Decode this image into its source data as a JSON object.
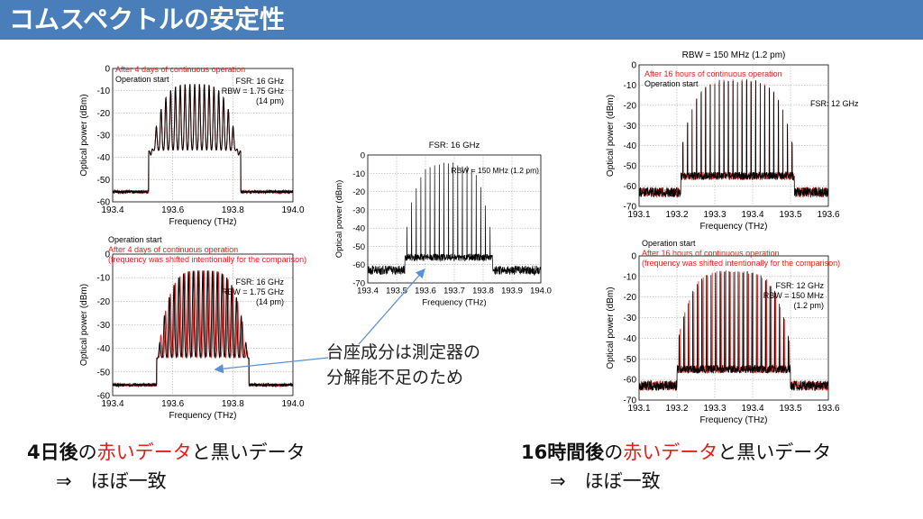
{
  "slide": {
    "title": "コムスペクトルの安定性",
    "colors": {
      "banner": "#4a7ebb",
      "red": "#e0201c",
      "black": "#000000",
      "arrow": "#5b8fd6"
    }
  },
  "callout": {
    "line1": "台座成分は測定器の",
    "line2": "分解能不足のため",
    "icon": "arrow-icon"
  },
  "summaries": [
    {
      "bold": "4日後",
      "mid1": "の",
      "red": "赤いデータ",
      "mid2": "と黒いデータ",
      "line2": "⇒　ほぼ一致"
    },
    {
      "bold": "16時間後",
      "mid1": "の",
      "red": "赤いデータ",
      "mid2": "と黒いデータ",
      "line2": "⇒　ほぼ一致"
    }
  ],
  "chart_data": [
    {
      "id": "c1",
      "type": "line",
      "xlabel": "Frequency (THz)",
      "ylabel": "Optical power (dBm)",
      "xlim": [
        193.4,
        194.0
      ],
      "ylim": [
        -60,
        0
      ],
      "xticks": [
        "193.4",
        "193.6",
        "193.8",
        "194.0"
      ],
      "yticks": [
        "0",
        "-10",
        "-20",
        "-30",
        "-40",
        "-50",
        "-60"
      ],
      "title": "",
      "legend": [
        {
          "text": "After 4 days of continuous operation",
          "color": "#e0201c"
        },
        {
          "text": "Operation start",
          "color": "#000000"
        }
      ],
      "notes": [
        "FSR: 16 GHz",
        "RBW = 1.75 GHz",
        "(14 pm)"
      ],
      "comb": {
        "center": 193.673,
        "fsr_thz": 0.016,
        "lines": 19,
        "peak_db": -7,
        "edge_db": -47,
        "floor_db": -55.5,
        "valley_db": -37,
        "pedestal_db": -53,
        "kind": "broad"
      },
      "series": [
        {
          "color": "#e0201c"
        },
        {
          "color": "#000000"
        }
      ]
    },
    {
      "id": "c2",
      "type": "line",
      "xlabel": "Frequency (THz)",
      "ylabel": "Optical power (dBm)",
      "xlim": [
        193.4,
        194.0
      ],
      "ylim": [
        -60,
        0
      ],
      "xticks": [
        "193.4",
        "193.6",
        "193.8",
        "194.0"
      ],
      "yticks": [
        "0",
        "-10",
        "-20",
        "-30",
        "-40",
        "-50",
        "-60"
      ],
      "title": "",
      "legend": [
        {
          "text": "Operation start",
          "color": "#000000"
        },
        {
          "text": "After 4 days of continuous operation",
          "color": "#e0201c"
        },
        {
          "text": "(frequency was shifted intentionally for the comparison)",
          "color": "#e0201c"
        }
      ],
      "notes": [
        "FSR: 16 GHz",
        "RBW = 1.75 GHz",
        "(14 pm)"
      ],
      "comb": {
        "center": 193.7,
        "fsr_thz": 0.016,
        "lines": 19,
        "peak_db": -7,
        "edge_db": -47,
        "floor_db": -55.5,
        "valley_db": -44,
        "pedestal_db": -53,
        "kind": "broad",
        "shift_thz": 0.004
      },
      "series": [
        {
          "color": "#000000"
        },
        {
          "color": "#e0201c"
        }
      ]
    },
    {
      "id": "c3",
      "type": "line",
      "xlabel": "Frequency (THz)",
      "ylabel": "Optical power (dBm)",
      "xlim": [
        193.4,
        194.0
      ],
      "ylim": [
        -70,
        0
      ],
      "xticks": [
        "193.4",
        "193.5",
        "193.6",
        "193.7",
        "193.8",
        "193.9",
        "194.0"
      ],
      "yticks": [
        "0",
        "-10",
        "-20",
        "-30",
        "-40",
        "-50",
        "-60",
        "-70"
      ],
      "title": "FSR: 16 GHz",
      "legend": [],
      "notes": [
        "RBW = 150 MHz (1.2 pm)"
      ],
      "comb": {
        "center": 193.68,
        "fsr_thz": 0.016,
        "lines": 19,
        "peak_db": -5,
        "edge_db": -50,
        "floor_db": -63,
        "valley_db": -60,
        "pedestal_db": -56,
        "kind": "narrow"
      },
      "series": [
        {
          "color": "#000000"
        }
      ]
    },
    {
      "id": "c4",
      "type": "line",
      "xlabel": "Frequency (THz)",
      "ylabel": "Optical power (dBm)",
      "xlim": [
        193.1,
        193.6
      ],
      "ylim": [
        -70,
        0
      ],
      "xticks": [
        "193.1",
        "193.2",
        "193.3",
        "193.4",
        "193.5",
        "193.6"
      ],
      "yticks": [
        "0",
        "-10",
        "-20",
        "-30",
        "-40",
        "-50",
        "-60",
        "-70"
      ],
      "title": "RBW = 150 MHz (1.2 pm)",
      "legend": [
        {
          "text": "After 16 hours of continuous operation",
          "color": "#e0201c"
        },
        {
          "text": "Operation start",
          "color": "#000000"
        }
      ],
      "notes": [
        "FSR: 12 GHz"
      ],
      "comb": {
        "center": 193.36,
        "fsr_thz": 0.012,
        "lines": 25,
        "peak_db": -8,
        "edge_db": -45,
        "floor_db": -63,
        "valley_db": -60,
        "pedestal_db": -55,
        "kind": "narrow"
      },
      "series": [
        {
          "color": "#e0201c"
        },
        {
          "color": "#000000"
        }
      ]
    },
    {
      "id": "c5",
      "type": "line",
      "xlabel": "Frequency (THz)",
      "ylabel": "Optical power (dBm)",
      "xlim": [
        193.1,
        193.6
      ],
      "ylim": [
        -70,
        0
      ],
      "xticks": [
        "193.1",
        "193.2",
        "193.3",
        "193.4",
        "193.5",
        "193.6"
      ],
      "yticks": [
        "0",
        "-10",
        "-20",
        "-30",
        "-40",
        "-50",
        "-60",
        "-70"
      ],
      "title": "",
      "legend": [
        {
          "text": "Operation start",
          "color": "#000000"
        },
        {
          "text": "After 16 hours of continuous operation",
          "color": "#e0201c"
        },
        {
          "text": "(frequency was shifted intentionally for the comparison)",
          "color": "#e0201c"
        }
      ],
      "notes": [
        "FSR: 12 GHz",
        "RBW = 150 MHz",
        "(1.2 pm)"
      ],
      "comb": {
        "center": 193.35,
        "fsr_thz": 0.012,
        "lines": 25,
        "peak_db": -8,
        "edge_db": -45,
        "floor_db": -63,
        "valley_db": -60,
        "pedestal_db": -55,
        "kind": "narrow",
        "shift_thz": 0.003
      },
      "series": [
        {
          "color": "#000000"
        },
        {
          "color": "#e0201c"
        }
      ]
    }
  ]
}
